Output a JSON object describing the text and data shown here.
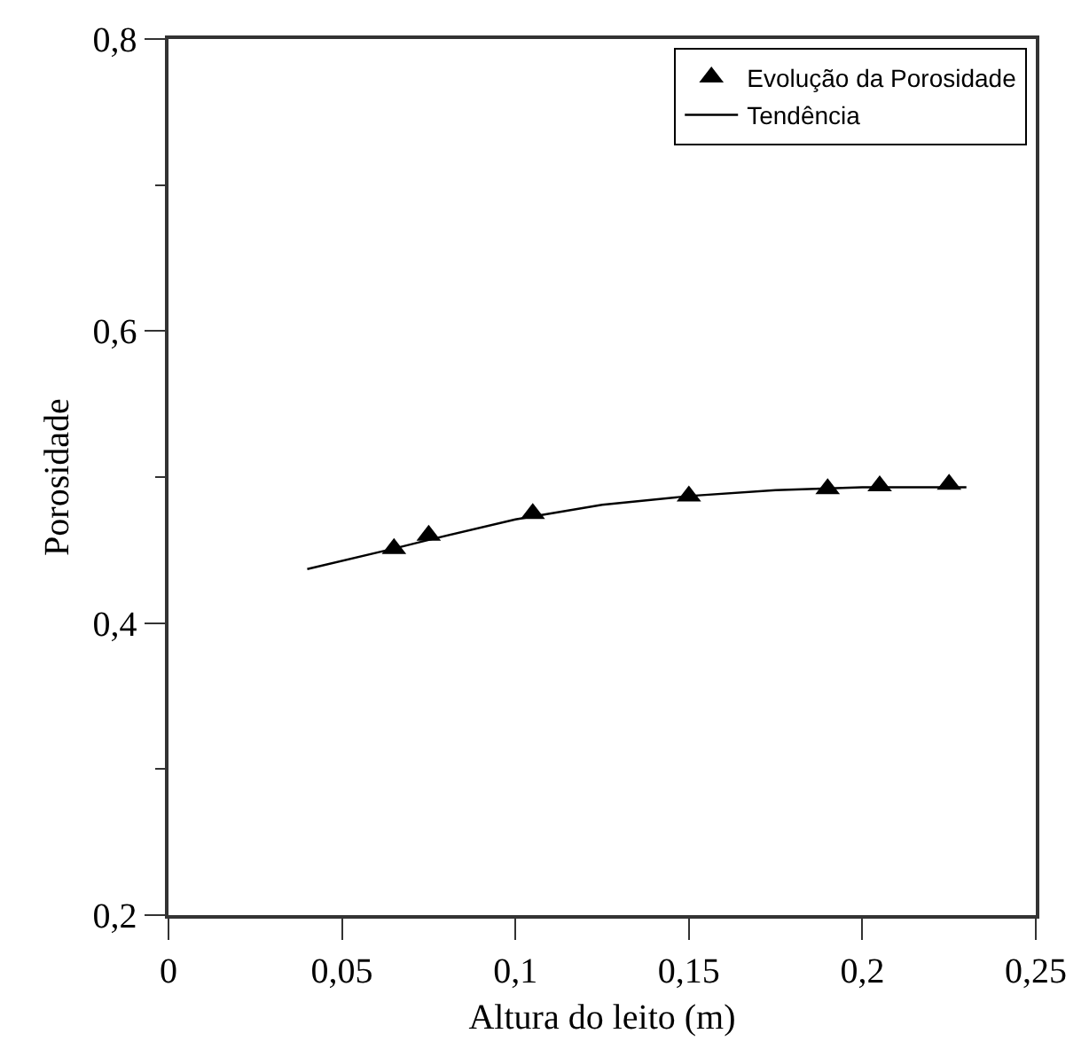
{
  "chart_data": {
    "type": "scatter",
    "xlabel": "Altura do leito (m)",
    "ylabel": "Porosidade",
    "xlim": [
      0,
      0.25
    ],
    "ylim": [
      0.2,
      0.8
    ],
    "xticks": [
      {
        "value": 0,
        "label": "0"
      },
      {
        "value": 0.05,
        "label": "0,05"
      },
      {
        "value": 0.1,
        "label": "0,1"
      },
      {
        "value": 0.15,
        "label": "0,15"
      },
      {
        "value": 0.2,
        "label": "0,2"
      },
      {
        "value": 0.25,
        "label": "0,25"
      }
    ],
    "yticks": [
      {
        "value": 0.2,
        "label": "0,2"
      },
      {
        "value": 0.4,
        "label": "0,4"
      },
      {
        "value": 0.6,
        "label": "0,6"
      },
      {
        "value": 0.8,
        "label": "0,8"
      }
    ],
    "grid": false,
    "legend": "top right",
    "series": [
      {
        "name": "Evolução da Porosidade",
        "marker": "triangle",
        "color": "#000000",
        "x": [
          0.065,
          0.075,
          0.105,
          0.15,
          0.19,
          0.205,
          0.225
        ],
        "values": [
          0.451,
          0.46,
          0.475,
          0.487,
          0.492,
          0.494,
          0.495
        ]
      },
      {
        "name": "Tendência",
        "type": "line",
        "color": "#000000",
        "line_style": "solid",
        "x": [
          0.04,
          0.065,
          0.075,
          0.1,
          0.125,
          0.15,
          0.175,
          0.2,
          0.23
        ],
        "values": [
          0.437,
          0.451,
          0.457,
          0.471,
          0.481,
          0.487,
          0.491,
          0.493,
          0.493
        ]
      }
    ]
  }
}
